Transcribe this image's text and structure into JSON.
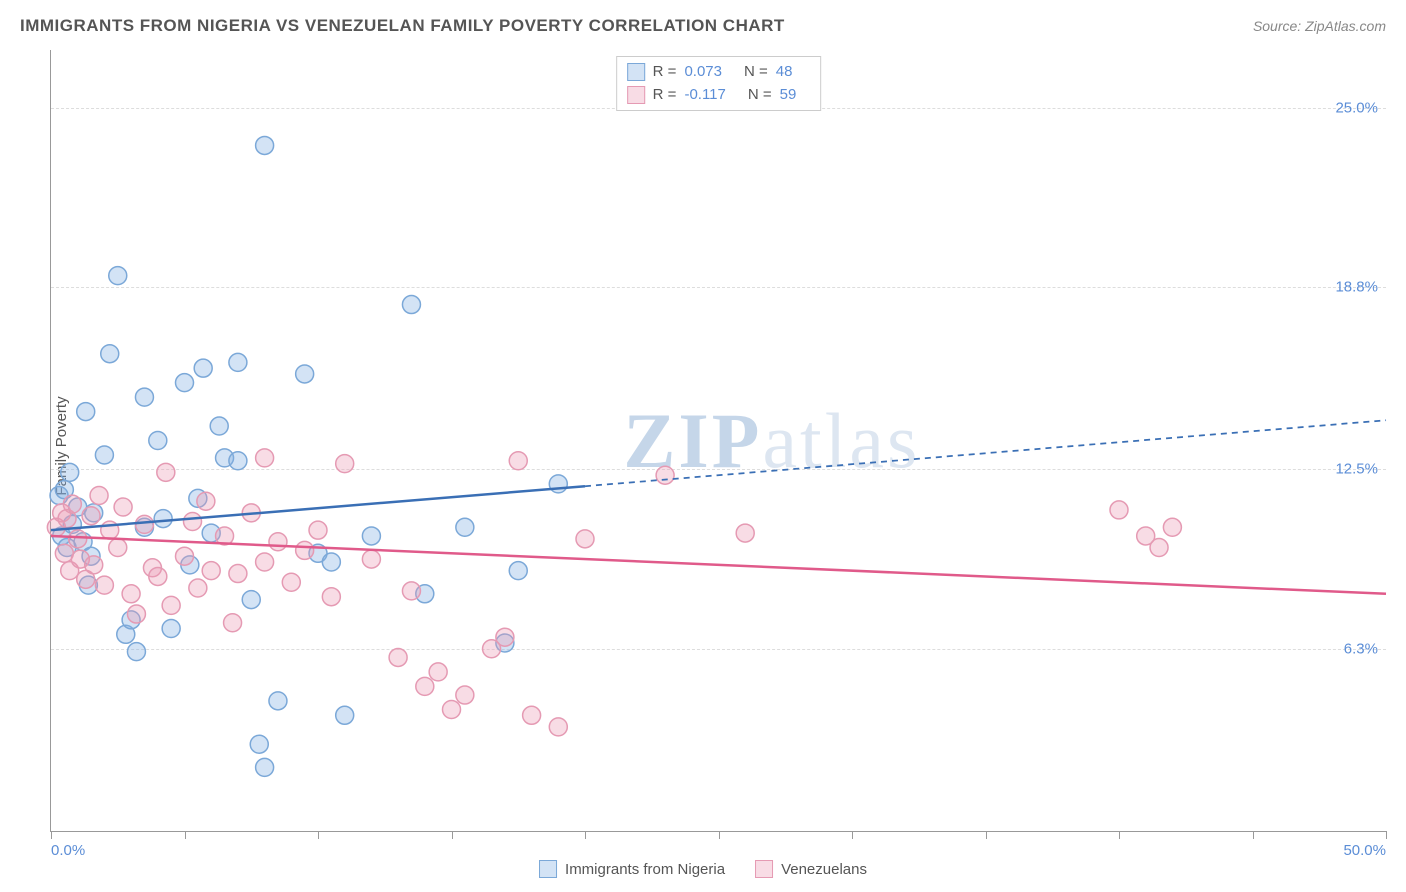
{
  "header": {
    "title": "IMMIGRANTS FROM NIGERIA VS VENEZUELAN FAMILY POVERTY CORRELATION CHART",
    "source": "Source: ZipAtlas.com"
  },
  "ylabel": "Family Poverty",
  "watermark": {
    "zip": "ZIP",
    "atlas": "atlas"
  },
  "chart": {
    "type": "scatter",
    "xlim": [
      0,
      50
    ],
    "ylim": [
      0,
      27
    ],
    "x_ticks": [
      0,
      5,
      10,
      15,
      20,
      25,
      30,
      35,
      40,
      45,
      50
    ],
    "x_tick_labels": {
      "start": "0.0%",
      "end": "50.0%"
    },
    "y_gridlines": [
      6.3,
      12.5,
      18.8,
      25.0
    ],
    "y_tick_labels": [
      "6.3%",
      "12.5%",
      "18.8%",
      "25.0%"
    ],
    "background_color": "#ffffff",
    "grid_color": "#dddddd",
    "axis_color": "#999999",
    "marker_radius": 9,
    "marker_stroke_width": 1.5,
    "trend_line_width": 2.5
  },
  "series": [
    {
      "id": "nigeria",
      "label": "Immigrants from Nigeria",
      "color_fill": "rgba(130, 175, 225, 0.35)",
      "color_stroke": "#7ba8d8",
      "trend_color": "#3a6fb5",
      "R": "0.073",
      "N": "48",
      "trend": {
        "x1": 0,
        "y1": 10.4,
        "x2": 50,
        "y2": 14.2,
        "solid_until_x": 20
      },
      "points": [
        [
          0.3,
          11.6
        ],
        [
          0.4,
          10.2
        ],
        [
          0.5,
          11.8
        ],
        [
          0.6,
          9.8
        ],
        [
          0.7,
          12.4
        ],
        [
          0.8,
          10.6
        ],
        [
          1.0,
          11.2
        ],
        [
          1.2,
          10.0
        ],
        [
          1.3,
          14.5
        ],
        [
          1.4,
          8.5
        ],
        [
          1.5,
          9.5
        ],
        [
          1.6,
          11.0
        ],
        [
          2.0,
          13.0
        ],
        [
          2.2,
          16.5
        ],
        [
          2.5,
          19.2
        ],
        [
          2.8,
          6.8
        ],
        [
          3.0,
          7.3
        ],
        [
          3.2,
          6.2
        ],
        [
          3.5,
          15.0
        ],
        [
          3.5,
          10.5
        ],
        [
          4.0,
          13.5
        ],
        [
          4.2,
          10.8
        ],
        [
          4.5,
          7.0
        ],
        [
          5.0,
          15.5
        ],
        [
          5.2,
          9.2
        ],
        [
          5.5,
          11.5
        ],
        [
          5.7,
          16.0
        ],
        [
          6.0,
          10.3
        ],
        [
          6.3,
          14.0
        ],
        [
          6.5,
          12.9
        ],
        [
          7.0,
          16.2
        ],
        [
          7.0,
          12.8
        ],
        [
          7.5,
          8.0
        ],
        [
          7.8,
          3.0
        ],
        [
          8.0,
          2.2
        ],
        [
          8.0,
          23.7
        ],
        [
          8.5,
          4.5
        ],
        [
          9.5,
          15.8
        ],
        [
          10.0,
          9.6
        ],
        [
          10.5,
          9.3
        ],
        [
          11.0,
          4.0
        ],
        [
          12.0,
          10.2
        ],
        [
          13.5,
          18.2
        ],
        [
          14.0,
          8.2
        ],
        [
          15.5,
          10.5
        ],
        [
          17.0,
          6.5
        ],
        [
          17.5,
          9.0
        ],
        [
          19.0,
          12.0
        ]
      ]
    },
    {
      "id": "venezuela",
      "label": "Venezuelans",
      "color_fill": "rgba(235, 155, 180, 0.35)",
      "color_stroke": "#e59ab3",
      "trend_color": "#e05a8a",
      "R": "-0.117",
      "N": "59",
      "trend": {
        "x1": 0,
        "y1": 10.2,
        "x2": 50,
        "y2": 8.2,
        "solid_until_x": 50
      },
      "points": [
        [
          0.2,
          10.5
        ],
        [
          0.4,
          11.0
        ],
        [
          0.5,
          9.6
        ],
        [
          0.6,
          10.8
        ],
        [
          0.7,
          9.0
        ],
        [
          0.8,
          11.3
        ],
        [
          1.0,
          10.1
        ],
        [
          1.1,
          9.4
        ],
        [
          1.3,
          8.7
        ],
        [
          1.5,
          10.9
        ],
        [
          1.6,
          9.2
        ],
        [
          1.8,
          11.6
        ],
        [
          2.0,
          8.5
        ],
        [
          2.2,
          10.4
        ],
        [
          2.5,
          9.8
        ],
        [
          2.7,
          11.2
        ],
        [
          3.0,
          8.2
        ],
        [
          3.2,
          7.5
        ],
        [
          3.5,
          10.6
        ],
        [
          3.8,
          9.1
        ],
        [
          4.0,
          8.8
        ],
        [
          4.3,
          12.4
        ],
        [
          4.5,
          7.8
        ],
        [
          5.0,
          9.5
        ],
        [
          5.3,
          10.7
        ],
        [
          5.5,
          8.4
        ],
        [
          5.8,
          11.4
        ],
        [
          6.0,
          9.0
        ],
        [
          6.5,
          10.2
        ],
        [
          6.8,
          7.2
        ],
        [
          7.0,
          8.9
        ],
        [
          7.5,
          11.0
        ],
        [
          8.0,
          9.3
        ],
        [
          8.0,
          12.9
        ],
        [
          8.5,
          10.0
        ],
        [
          9.0,
          8.6
        ],
        [
          9.5,
          9.7
        ],
        [
          10.0,
          10.4
        ],
        [
          10.5,
          8.1
        ],
        [
          11.0,
          12.7
        ],
        [
          12.0,
          9.4
        ],
        [
          13.0,
          6.0
        ],
        [
          13.5,
          8.3
        ],
        [
          14.0,
          5.0
        ],
        [
          14.5,
          5.5
        ],
        [
          15.0,
          4.2
        ],
        [
          15.5,
          4.7
        ],
        [
          16.5,
          6.3
        ],
        [
          17.0,
          6.7
        ],
        [
          17.5,
          12.8
        ],
        [
          18.0,
          4.0
        ],
        [
          19.0,
          3.6
        ],
        [
          20.0,
          10.1
        ],
        [
          23.0,
          12.3
        ],
        [
          26.0,
          10.3
        ],
        [
          40.0,
          11.1
        ],
        [
          41.0,
          10.2
        ],
        [
          41.5,
          9.8
        ],
        [
          42.0,
          10.5
        ]
      ]
    }
  ],
  "legend_top": {
    "r_label": "R =",
    "n_label": "N ="
  }
}
